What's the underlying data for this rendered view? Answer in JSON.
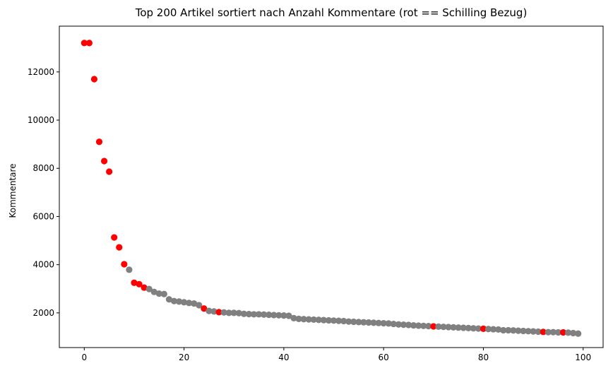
{
  "chart_data": {
    "type": "scatter",
    "title": "Top 200 Artikel sortiert nach Anzahl Kommentare (rot == Schilling Bezug)",
    "xlabel": "",
    "ylabel": "Kommentare",
    "xlim": [
      -5,
      104
    ],
    "ylim": [
      560,
      13900
    ],
    "xticks": [
      0,
      20,
      40,
      60,
      80,
      100
    ],
    "yticks": [
      2000,
      4000,
      6000,
      8000,
      10000,
      12000
    ],
    "xtick_labels": [
      "0",
      "20",
      "40",
      "60",
      "80",
      "100"
    ],
    "ytick_labels": [
      "2000",
      "4000",
      "6000",
      "8000",
      "10000",
      "12000"
    ],
    "grid": false,
    "colors": {
      "highlight": "#ff0000",
      "default": "#808080"
    },
    "x": [
      0,
      1,
      2,
      3,
      4,
      5,
      6,
      7,
      8,
      9,
      10,
      11,
      12,
      13,
      14,
      15,
      16,
      17,
      18,
      19,
      20,
      21,
      22,
      23,
      24,
      25,
      26,
      27,
      28,
      29,
      30,
      31,
      32,
      33,
      34,
      35,
      36,
      37,
      38,
      39,
      40,
      41,
      42,
      43,
      44,
      45,
      46,
      47,
      48,
      49,
      50,
      51,
      52,
      53,
      54,
      55,
      56,
      57,
      58,
      59,
      60,
      61,
      62,
      63,
      64,
      65,
      66,
      67,
      68,
      69,
      70,
      71,
      72,
      73,
      74,
      75,
      76,
      77,
      78,
      79,
      80,
      81,
      82,
      83,
      84,
      85,
      86,
      87,
      88,
      89,
      90,
      91,
      92,
      93,
      94,
      95,
      96,
      97,
      98,
      99
    ],
    "y": [
      13200,
      13200,
      11700,
      9100,
      8300,
      7860,
      5130,
      4720,
      4020,
      3790,
      3250,
      3190,
      3050,
      2990,
      2870,
      2800,
      2780,
      2560,
      2490,
      2470,
      2440,
      2410,
      2390,
      2320,
      2180,
      2080,
      2060,
      2030,
      2020,
      2000,
      2000,
      1990,
      1960,
      1950,
      1940,
      1940,
      1930,
      1920,
      1910,
      1900,
      1890,
      1880,
      1780,
      1750,
      1740,
      1730,
      1720,
      1710,
      1700,
      1690,
      1680,
      1670,
      1660,
      1640,
      1630,
      1620,
      1610,
      1600,
      1590,
      1580,
      1570,
      1560,
      1540,
      1520,
      1510,
      1500,
      1480,
      1470,
      1460,
      1450,
      1440,
      1430,
      1420,
      1410,
      1400,
      1390,
      1380,
      1370,
      1360,
      1350,
      1340,
      1330,
      1320,
      1310,
      1280,
      1280,
      1270,
      1260,
      1250,
      1240,
      1230,
      1220,
      1210,
      1200,
      1200,
      1190,
      1190,
      1180,
      1160,
      1140
    ],
    "highlight": [
      1,
      1,
      1,
      1,
      1,
      1,
      1,
      1,
      1,
      0,
      1,
      1,
      1,
      0,
      0,
      0,
      0,
      0,
      0,
      0,
      0,
      0,
      0,
      0,
      1,
      0,
      0,
      1,
      0,
      0,
      0,
      0,
      0,
      0,
      0,
      0,
      0,
      0,
      0,
      0,
      0,
      0,
      0,
      0,
      0,
      0,
      0,
      0,
      0,
      0,
      0,
      0,
      0,
      0,
      0,
      0,
      0,
      0,
      0,
      0,
      0,
      0,
      0,
      0,
      0,
      0,
      0,
      0,
      0,
      0,
      1,
      0,
      0,
      0,
      0,
      0,
      0,
      0,
      0,
      0,
      1,
      0,
      0,
      0,
      0,
      0,
      0,
      0,
      0,
      0,
      0,
      0,
      1,
      0,
      0,
      0,
      1,
      0,
      0,
      0
    ]
  }
}
